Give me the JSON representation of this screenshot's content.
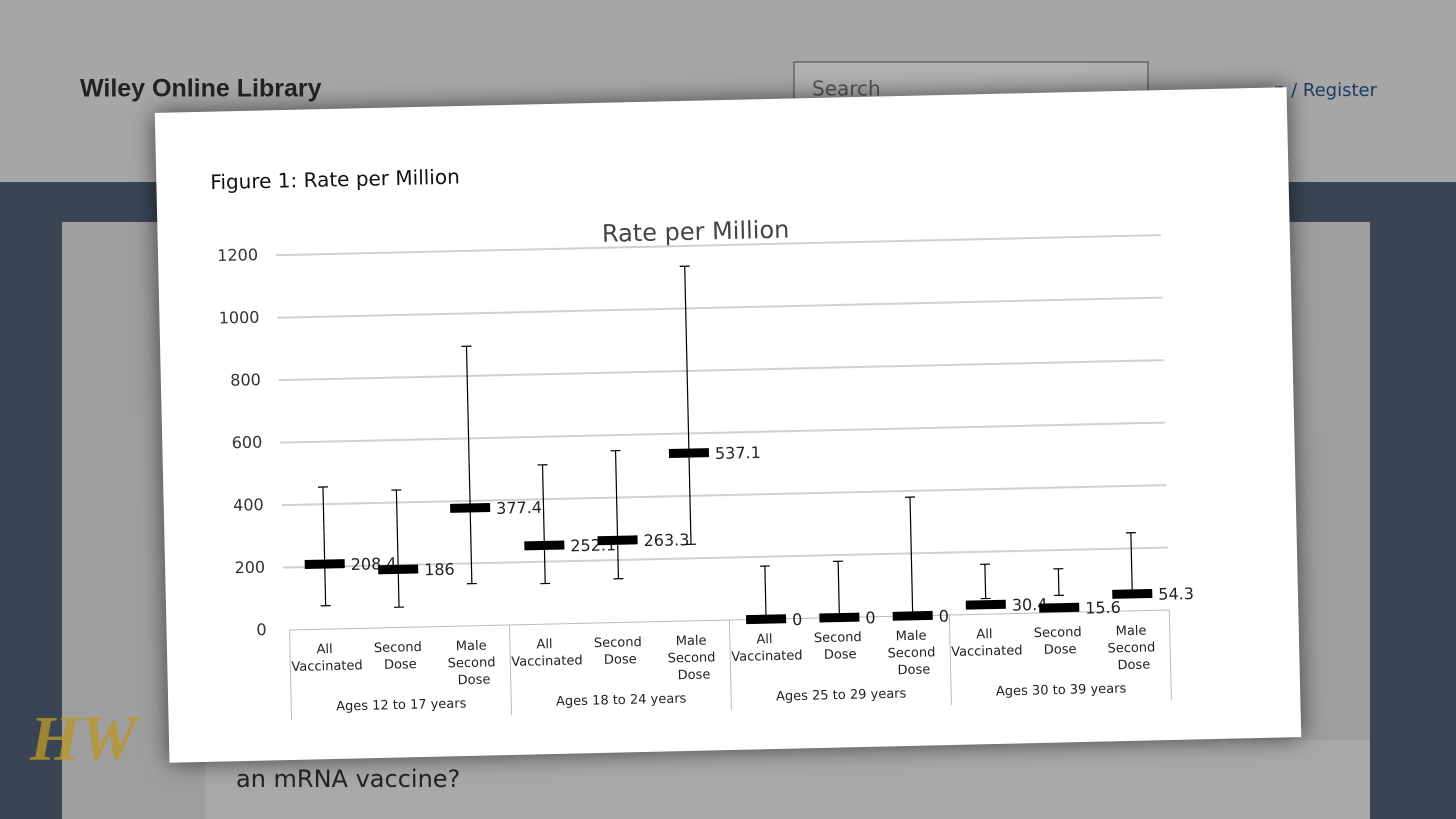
{
  "header": {
    "site": "Wiley Online Library",
    "search": "Search",
    "account": "n / Register"
  },
  "figure_caption": "Figure 1: Rate per Million",
  "footer_text": "an mRNA vaccine?",
  "logo": "HW",
  "chart_data": {
    "type": "errorbar",
    "title": "Rate per Million",
    "categories": [
      "All Vaccinated",
      "Second Dose",
      "Male Second Dose",
      "All Vaccinated",
      "Second Dose",
      "Male Second Dose",
      "All Vaccinated",
      "Second Dose",
      "Male Second Dose",
      "All Vaccinated",
      "Second Dose",
      "Male Second Dose"
    ],
    "groups": [
      "Ages 12 to 17 years",
      "Ages 18 to 24 years",
      "Ages 25 to 29 years",
      "Ages 30 to 39 years"
    ],
    "values": [
      208.4,
      186,
      377.4,
      252.1,
      263.3,
      537.1,
      0,
      0,
      0,
      30.4,
      15.6,
      54.3
    ],
    "lower": [
      75,
      65,
      135,
      130,
      140,
      245,
      0,
      0,
      0,
      50,
      55,
      55
    ],
    "upper": [
      455,
      440,
      895,
      510,
      550,
      1135,
      170,
      180,
      380,
      160,
      140,
      250
    ],
    "color": "#000000",
    "ylim": [
      0,
      1200
    ],
    "yticks": [
      0,
      200,
      400,
      600,
      800,
      1000,
      1200
    ],
    "grid": true
  }
}
